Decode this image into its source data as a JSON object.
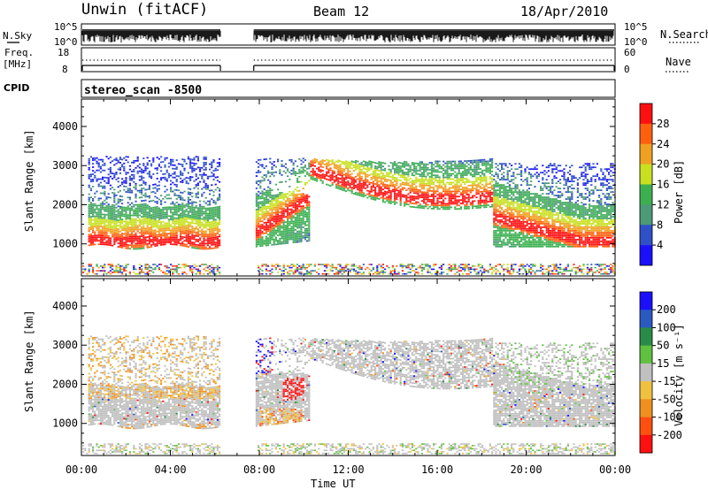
{
  "header": {
    "site": "Unwin (fitACF)",
    "beam": "Beam 12",
    "date": "18/Apr/2010"
  },
  "nsky_panel": {
    "label": "N.Sky",
    "right_label": "N.Search",
    "left_ticks": [
      "10^5",
      "10^0"
    ],
    "right_ticks": [
      "10^5",
      "10^0"
    ]
  },
  "freq_panel": {
    "label_line1": "Freq.",
    "label_line2": "[MHz]",
    "left_ticks": [
      "18",
      "8"
    ],
    "right_label": "Nave",
    "right_ticks": [
      "60",
      "0"
    ]
  },
  "cpid": {
    "label": "CPID",
    "value": "stereo_scan -8500"
  },
  "time_axis": {
    "label": "Time UT",
    "ticks": [
      "00:00",
      "04:00",
      "08:00",
      "12:00",
      "16:00",
      "20:00",
      "00:00"
    ]
  },
  "chart_data": [
    {
      "type": "heatmap",
      "title": "",
      "xlabel": "Time UT",
      "ylabel": "Slant Range [km]",
      "xlim": [
        0,
        24
      ],
      "ylim": [
        180,
        4700
      ],
      "yticks": [
        1000,
        2000,
        3000,
        4000
      ],
      "ytick_labels": [
        "1000",
        "2000",
        "3000",
        "4000"
      ],
      "colorbar": {
        "label": "Power [dB]",
        "tick_labels": [
          "4",
          "8",
          "12",
          "16",
          "20",
          "24",
          "28"
        ],
        "colors": [
          "#1a10ff",
          "#3050c8",
          "#4c9a78",
          "#3cb050",
          "#c8e020",
          "#f0a020",
          "#ff6010",
          "#ff1010"
        ]
      },
      "data_gap_hours": [
        6.25,
        7.75
      ],
      "echo_regions_km": [
        {
          "start_h": 0.3,
          "end_h": 6.2,
          "lower_km": 950,
          "upper_km": 3250
        },
        {
          "start_h": 7.8,
          "end_h": 10.2,
          "lower_km": 950,
          "upper_km": 3200
        },
        {
          "start_h": 10.2,
          "end_h": 18.5,
          "lower_km": 2800,
          "upper_km": 3200
        },
        {
          "start_h": 18.5,
          "end_h": 24.0,
          "lower_km": 950,
          "upper_km": 3100
        }
      ]
    },
    {
      "type": "heatmap",
      "title": "",
      "xlabel": "Time UT",
      "ylabel": "Slant Range [km]",
      "xlim": [
        0,
        24
      ],
      "ylim": [
        180,
        4700
      ],
      "yticks": [
        1000,
        2000,
        3000,
        4000
      ],
      "ytick_labels": [
        "1000",
        "2000",
        "3000",
        "4000"
      ],
      "colorbar": {
        "label": "Velocity [m s⁻¹]",
        "tick_labels": [
          "200",
          "100",
          "50",
          "15",
          "-15",
          "-50",
          "-100",
          "-200"
        ],
        "colors": [
          "#1a10ff",
          "#2a5ac0",
          "#2a8a48",
          "#60c040",
          "#c0c0c0",
          "#f0c040",
          "#f09020",
          "#ff5010",
          "#ff1010"
        ]
      },
      "data_gap_hours": [
        6.25,
        7.75
      ],
      "ground_scatter_note_color": "#c0c0c0"
    }
  ],
  "colors": {
    "ground_scatter": "#bebebe",
    "background": "#ffffff"
  }
}
